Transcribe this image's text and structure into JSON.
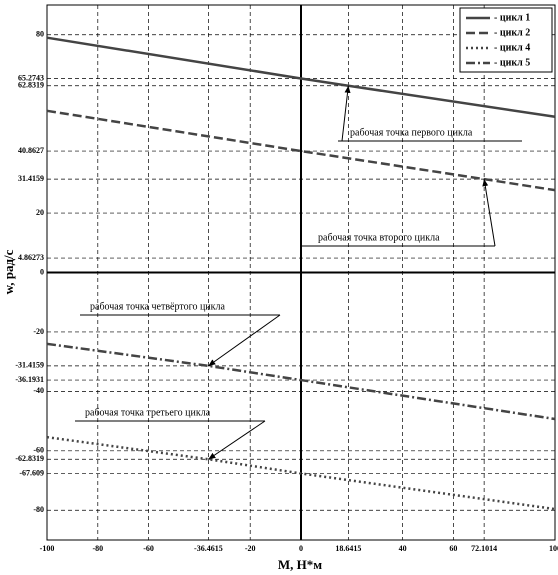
{
  "chart_data": {
    "type": "line",
    "xlabel": "M, Н*м",
    "ylabel": "w, рад/с",
    "xlim": [
      -100,
      100
    ],
    "ylim": [
      -90,
      90
    ],
    "xticks": [
      -100,
      -80,
      -60,
      -36.4615,
      -20,
      0,
      18.6415,
      40,
      60,
      72.1014,
      100
    ],
    "yticks": [
      80,
      65.2743,
      62.8319,
      40.8627,
      31.4159,
      20,
      4.86273,
      0,
      -20,
      -31.4159,
      -36.1931,
      -40,
      -60,
      -62.8319,
      -67.609,
      -80
    ],
    "grid": true,
    "legend": "upper right",
    "series": [
      {
        "name": "- цикл 1",
        "color": "#444444",
        "style": "solid",
        "x": [
          -100,
          0,
          18.6415,
          100
        ],
        "values": [
          79,
          65.2743,
          62.8319,
          52.4
        ]
      },
      {
        "name": "- цикл 2",
        "color": "#444444",
        "style": "dashed",
        "x": [
          -100,
          0,
          72.1014,
          100
        ],
        "values": [
          54.4,
          40.8627,
          31.4159,
          27.7
        ]
      },
      {
        "name": "- цикл 4",
        "color": "#444444",
        "style": "dotted",
        "x": [
          -100,
          -36.4615,
          0,
          100
        ],
        "values": [
          -55.4,
          -62.8319,
          -67.609,
          -79.6
        ]
      },
      {
        "name": "- цикл 5",
        "color": "#444444",
        "style": "dashdot",
        "x": [
          -100,
          -36.4615,
          0,
          100
        ],
        "values": [
          -24,
          -31.4159,
          -36.1931,
          -49.3
        ]
      }
    ],
    "annotations": [
      "рабочая точка первого цикла",
      "рабочая точка второго цикла",
      "рабочая точка четвёртого цикла",
      "рабочая точка третьего цикла"
    ]
  }
}
